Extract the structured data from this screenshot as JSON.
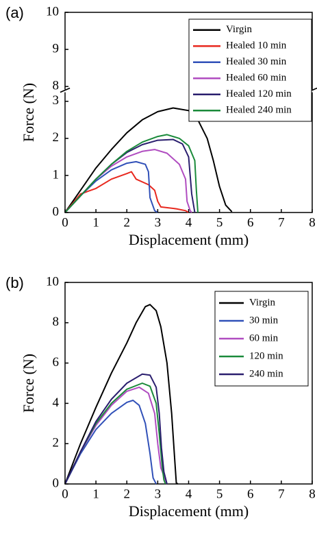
{
  "chart_data": [
    {
      "type": "line",
      "panel_label": "(a)",
      "xlabel": "Displacement (mm)",
      "ylabel": "Force (N)",
      "xlim": [
        0,
        8
      ],
      "xticks": [
        0,
        1,
        2,
        3,
        4,
        5,
        6,
        7,
        8
      ],
      "ylim": [
        0,
        10
      ],
      "ybreak": [
        3.3,
        7.9
      ],
      "yticks": [
        0,
        1,
        2,
        3,
        8,
        9,
        10
      ],
      "legend": "upper right",
      "series": [
        {
          "name": "Virgin",
          "color": "#000000",
          "x": [
            0,
            0.5,
            1,
            1.5,
            2,
            2.5,
            3,
            3.5,
            4,
            4.3,
            4.6,
            4.8,
            5,
            5.2,
            5.4
          ],
          "values": [
            0,
            0.6,
            1.2,
            1.7,
            2.15,
            2.5,
            2.72,
            2.82,
            2.75,
            2.5,
            2.0,
            1.4,
            0.7,
            0.2,
            0.02
          ]
        },
        {
          "name": "Healed 10 min",
          "color": "#e8281e",
          "x": [
            0,
            0.5,
            1,
            1.5,
            2,
            2.15,
            2.3,
            2.7,
            2.9,
            3,
            3.1,
            3.6,
            3.9,
            4
          ],
          "values": [
            0,
            0.5,
            0.65,
            0.9,
            1.05,
            1.1,
            0.9,
            0.75,
            0.6,
            0.3,
            0.15,
            0.1,
            0.05,
            0
          ]
        },
        {
          "name": "Healed 30 min",
          "color": "#3050b8",
          "x": [
            0,
            0.5,
            1,
            1.5,
            2,
            2.3,
            2.6,
            2.7,
            2.75,
            2.9,
            3
          ],
          "values": [
            0,
            0.45,
            0.85,
            1.15,
            1.33,
            1.37,
            1.3,
            1.1,
            0.4,
            0.05,
            0
          ]
        },
        {
          "name": "Healed 60 min",
          "color": "#b04cc0",
          "x": [
            0,
            0.5,
            1,
            1.5,
            2,
            2.5,
            2.9,
            3.3,
            3.7,
            3.9,
            3.95,
            4.05,
            4.1
          ],
          "values": [
            0,
            0.45,
            0.9,
            1.25,
            1.5,
            1.65,
            1.7,
            1.6,
            1.3,
            0.9,
            0.3,
            0.05,
            0
          ]
        },
        {
          "name": "Healed 120 min",
          "color": "#2a1e6e",
          "x": [
            0,
            0.5,
            1,
            1.5,
            2,
            2.5,
            3,
            3.5,
            3.8,
            4.0,
            4.1,
            4.2
          ],
          "values": [
            0,
            0.45,
            0.9,
            1.3,
            1.62,
            1.83,
            1.95,
            1.97,
            1.85,
            1.5,
            0.5,
            0
          ]
        },
        {
          "name": "Healed 240 min",
          "color": "#1a8a3a",
          "x": [
            0,
            0.5,
            1,
            1.5,
            2,
            2.5,
            3,
            3.3,
            3.7,
            4.0,
            4.2,
            4.25,
            4.3
          ],
          "values": [
            0,
            0.45,
            0.9,
            1.3,
            1.65,
            1.9,
            2.05,
            2.1,
            2.0,
            1.8,
            1.4,
            0.6,
            0
          ]
        }
      ]
    },
    {
      "type": "line",
      "panel_label": "(b)",
      "xlabel": "Displacement (mm)",
      "ylabel": "Force (N)",
      "xlim": [
        0,
        8
      ],
      "xticks": [
        0,
        1,
        2,
        3,
        4,
        5,
        6,
        7,
        8
      ],
      "ylim": [
        0,
        10
      ],
      "yticks": [
        0,
        2,
        4,
        6,
        8,
        10
      ],
      "legend": "upper right",
      "series": [
        {
          "name": "Virgin",
          "color": "#000000",
          "x": [
            0,
            0.3,
            0.5,
            1,
            1.5,
            2,
            2.3,
            2.6,
            2.75,
            2.95,
            3.1,
            3.3,
            3.45,
            3.55,
            3.6,
            3.65
          ],
          "values": [
            0,
            1.2,
            2.0,
            3.8,
            5.5,
            7.0,
            8.0,
            8.8,
            8.9,
            8.6,
            7.8,
            6.0,
            3.5,
            1.2,
            0.05,
            0
          ]
        },
        {
          "name": "30 min",
          "color": "#3050b8",
          "x": [
            0,
            0.5,
            1,
            1.5,
            2,
            2.2,
            2.4,
            2.6,
            2.75,
            2.85,
            2.95
          ],
          "values": [
            0,
            1.5,
            2.7,
            3.5,
            4.05,
            4.15,
            3.9,
            3.0,
            1.5,
            0.3,
            0
          ]
        },
        {
          "name": "60 min",
          "color": "#b04cc0",
          "x": [
            0,
            0.5,
            1,
            1.5,
            2,
            2.4,
            2.7,
            2.9,
            3.0,
            3.1,
            3.2,
            3.3
          ],
          "values": [
            0,
            1.6,
            2.9,
            3.9,
            4.6,
            4.8,
            4.5,
            3.5,
            2.0,
            0.8,
            0.4,
            0
          ]
        },
        {
          "name": "120 min",
          "color": "#1a8a3a",
          "x": [
            0,
            0.5,
            1,
            1.5,
            2,
            2.5,
            2.75,
            2.95,
            3.05,
            3.15,
            3.2,
            3.25
          ],
          "values": [
            0,
            1.6,
            3.0,
            4.0,
            4.7,
            5.0,
            4.85,
            4.0,
            2.5,
            0.8,
            0.2,
            0
          ]
        },
        {
          "name": "240 min",
          "color": "#2a1e6e",
          "x": [
            0,
            0.5,
            1,
            1.5,
            2,
            2.5,
            2.75,
            2.95,
            3.05,
            3.12,
            3.2,
            3.3
          ],
          "values": [
            0,
            1.6,
            3.1,
            4.2,
            5.0,
            5.45,
            5.4,
            4.8,
            3.5,
            1.8,
            0.6,
            0
          ]
        }
      ]
    }
  ]
}
